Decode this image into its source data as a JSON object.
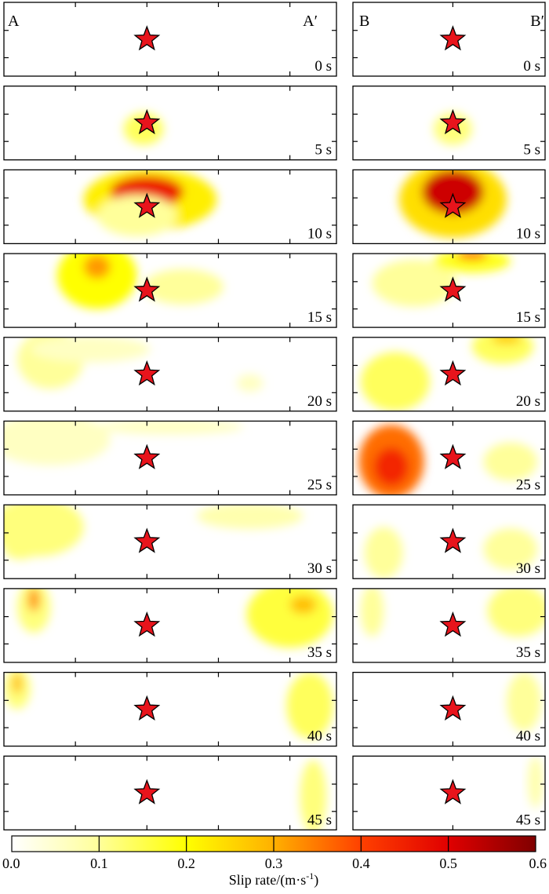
{
  "chart_data": {
    "type": "heatmap",
    "title": "",
    "colorbar": {
      "label_main": "Slip rate/(m·s",
      "label_sup": "-1",
      "label_end": ")",
      "ticks": [
        "0.0",
        "0.1",
        "0.2",
        "0.3",
        "0.4",
        "0.5",
        "0.6"
      ],
      "range": [
        0,
        0.6
      ],
      "colors": [
        "#ffffff",
        "#ffff9a",
        "#ffff00",
        "#ffb000",
        "#ff4000",
        "#e00000",
        "#800000"
      ]
    },
    "panels": {
      "left": {
        "start_label": "A",
        "end_label": "A′"
      },
      "right": {
        "start_label": "B",
        "end_label": "B′"
      }
    },
    "hypocenter": {
      "marker": "star-icon",
      "color": "#e8141c",
      "along_strike_frac_left": 0.43,
      "along_dip_frac_right": 0.52
    },
    "frames": [
      {
        "time": "0 s",
        "left": [],
        "right": []
      },
      {
        "time": "5 s",
        "left": [
          {
            "x": 0.42,
            "y": 0.58,
            "rx": 0.06,
            "ry": 0.22,
            "v": 0.14
          }
        ],
        "right": [
          {
            "x": 0.52,
            "y": 0.58,
            "rx": 0.1,
            "ry": 0.22,
            "v": 0.12
          }
        ]
      },
      {
        "time": "10 s",
        "left": [
          {
            "x": 0.44,
            "y": 0.4,
            "rx": 0.2,
            "ry": 0.42,
            "v": 0.22
          },
          {
            "x": 0.43,
            "y": 0.3,
            "rx": 0.11,
            "ry": 0.22,
            "v": 0.46
          },
          {
            "x": 0.4,
            "y": 0.62,
            "rx": 0.12,
            "ry": 0.28,
            "v": 0.1
          }
        ],
        "right": [
          {
            "x": 0.52,
            "y": 0.4,
            "rx": 0.28,
            "ry": 0.52,
            "v": 0.24
          },
          {
            "x": 0.52,
            "y": 0.3,
            "rx": 0.16,
            "ry": 0.3,
            "v": 0.52
          }
        ]
      },
      {
        "time": "15 s",
        "left": [
          {
            "x": 0.28,
            "y": 0.3,
            "rx": 0.12,
            "ry": 0.45,
            "v": 0.2
          },
          {
            "x": 0.28,
            "y": 0.18,
            "rx": 0.04,
            "ry": 0.16,
            "v": 0.32
          },
          {
            "x": 0.54,
            "y": 0.45,
            "rx": 0.12,
            "ry": 0.24,
            "v": 0.1
          }
        ],
        "right": [
          {
            "x": 0.32,
            "y": 0.4,
            "rx": 0.22,
            "ry": 0.32,
            "v": 0.1
          },
          {
            "x": 0.62,
            "y": 0.1,
            "rx": 0.2,
            "ry": 0.16,
            "v": 0.18
          },
          {
            "x": 0.62,
            "y": 0.02,
            "rx": 0.08,
            "ry": 0.06,
            "v": 0.38
          }
        ]
      },
      {
        "time": "20 s",
        "left": [
          {
            "x": 0.14,
            "y": 0.3,
            "rx": 0.1,
            "ry": 0.4,
            "v": 0.1
          },
          {
            "x": 0.26,
            "y": 0.16,
            "rx": 0.18,
            "ry": 0.18,
            "v": 0.06
          },
          {
            "x": 0.74,
            "y": 0.62,
            "rx": 0.04,
            "ry": 0.12,
            "v": 0.06
          }
        ],
        "right": [
          {
            "x": 0.22,
            "y": 0.6,
            "rx": 0.18,
            "ry": 0.4,
            "v": 0.14
          },
          {
            "x": 0.78,
            "y": 0.12,
            "rx": 0.16,
            "ry": 0.24,
            "v": 0.14
          },
          {
            "x": 0.8,
            "y": 0.02,
            "rx": 0.08,
            "ry": 0.08,
            "v": 0.26
          }
        ]
      },
      {
        "time": "25 s",
        "left": [
          {
            "x": 0.14,
            "y": 0.25,
            "rx": 0.18,
            "ry": 0.35,
            "v": 0.06
          },
          {
            "x": 0.5,
            "y": 0.08,
            "rx": 0.22,
            "ry": 0.1,
            "v": 0.06
          }
        ],
        "right": [
          {
            "x": 0.2,
            "y": 0.55,
            "rx": 0.17,
            "ry": 0.5,
            "v": 0.36
          },
          {
            "x": 0.2,
            "y": 0.62,
            "rx": 0.09,
            "ry": 0.26,
            "v": 0.44
          },
          {
            "x": 0.82,
            "y": 0.55,
            "rx": 0.14,
            "ry": 0.26,
            "v": 0.1
          }
        ]
      },
      {
        "time": "30 s",
        "left": [
          {
            "x": 0.1,
            "y": 0.3,
            "rx": 0.14,
            "ry": 0.4,
            "v": 0.12
          },
          {
            "x": 0.05,
            "y": 0.6,
            "rx": 0.05,
            "ry": 0.14,
            "v": 0.12
          },
          {
            "x": 0.74,
            "y": 0.15,
            "rx": 0.16,
            "ry": 0.18,
            "v": 0.08
          }
        ],
        "right": [
          {
            "x": 0.16,
            "y": 0.65,
            "rx": 0.1,
            "ry": 0.35,
            "v": 0.1
          },
          {
            "x": 0.82,
            "y": 0.6,
            "rx": 0.14,
            "ry": 0.28,
            "v": 0.1
          }
        ]
      },
      {
        "time": "35 s",
        "left": [
          {
            "x": 0.09,
            "y": 0.25,
            "rx": 0.05,
            "ry": 0.35,
            "v": 0.12
          },
          {
            "x": 0.09,
            "y": 0.15,
            "rx": 0.018,
            "ry": 0.16,
            "v": 0.32
          },
          {
            "x": 0.86,
            "y": 0.35,
            "rx": 0.13,
            "ry": 0.45,
            "v": 0.16
          },
          {
            "x": 0.9,
            "y": 0.22,
            "rx": 0.04,
            "ry": 0.12,
            "v": 0.28
          }
        ],
        "right": [
          {
            "x": 0.1,
            "y": 0.3,
            "rx": 0.06,
            "ry": 0.35,
            "v": 0.1
          },
          {
            "x": 0.86,
            "y": 0.3,
            "rx": 0.16,
            "ry": 0.35,
            "v": 0.12
          }
        ]
      },
      {
        "time": "40 s",
        "left": [
          {
            "x": 0.04,
            "y": 0.22,
            "rx": 0.04,
            "ry": 0.28,
            "v": 0.12
          },
          {
            "x": 0.04,
            "y": 0.15,
            "rx": 0.015,
            "ry": 0.14,
            "v": 0.28
          },
          {
            "x": 0.92,
            "y": 0.45,
            "rx": 0.07,
            "ry": 0.45,
            "v": 0.14
          }
        ],
        "right": [
          {
            "x": 0.89,
            "y": 0.4,
            "rx": 0.09,
            "ry": 0.4,
            "v": 0.1
          }
        ]
      },
      {
        "time": "45 s",
        "left": [
          {
            "x": 0.93,
            "y": 0.55,
            "rx": 0.04,
            "ry": 0.5,
            "v": 0.12
          }
        ],
        "right": [
          {
            "x": 0.95,
            "y": 0.35,
            "rx": 0.04,
            "ry": 0.35,
            "v": 0.08
          }
        ]
      }
    ]
  }
}
